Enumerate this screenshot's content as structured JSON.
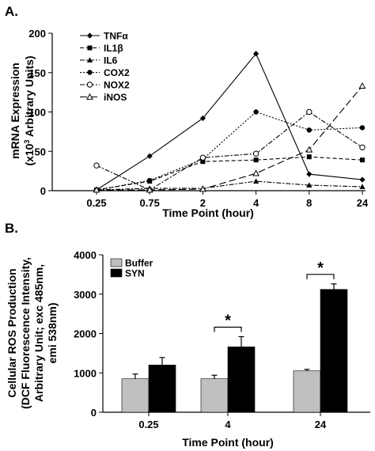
{
  "chart_data": [
    {
      "type": "line",
      "panel_label": "A.",
      "title": "",
      "xlabel": "Time Point (hour)",
      "ylabel_line1": "mRNA Expression",
      "ylabel_line2_prefix": "(x10",
      "ylabel_line2_sup": "3",
      "ylabel_line2_suffix": " Arbitrary Units)",
      "categories": [
        "0.25",
        "0.75",
        "2",
        "4",
        "8",
        "24"
      ],
      "yticks": [
        "0",
        "50",
        "100",
        "150",
        "200"
      ],
      "ylim": [
        0,
        200
      ],
      "grid": false,
      "legend_position": "top-left",
      "series": [
        {
          "name": "TNFα",
          "marker": "diamond-filled",
          "dash": "solid",
          "values": [
            1,
            44,
            92,
            174,
            21,
            14
          ]
        },
        {
          "name": "IL1β",
          "marker": "square-filled",
          "dash": "dashed",
          "values": [
            1,
            12,
            37,
            39,
            43,
            39
          ]
        },
        {
          "name": "IL6",
          "marker": "triangle-filled",
          "dash": "dashdot",
          "values": [
            1,
            3,
            3,
            12,
            7,
            5
          ]
        },
        {
          "name": "COX2",
          "marker": "circle-filled",
          "dash": "dotted",
          "values": [
            1,
            13,
            40,
            100,
            77,
            80
          ]
        },
        {
          "name": "NOX2",
          "marker": "circle-open",
          "dash": "dashdot",
          "values": [
            32,
            1,
            42,
            47,
            100,
            55
          ]
        },
        {
          "name": "iNOS",
          "marker": "triangle-open",
          "dash": "longdash",
          "values": [
            1,
            1,
            2,
            22,
            52,
            133
          ]
        }
      ]
    },
    {
      "type": "bar",
      "panel_label": "B.",
      "title": "",
      "xlabel": "Time Point (hour)",
      "ylabel_lines": [
        "Cellular ROS Production",
        "(DCF Fluorescence Intensity,",
        "Arbitrary Unit; exc 485nm,",
        "emi 538nm)"
      ],
      "categories": [
        "0.25",
        "4",
        "24"
      ],
      "yticks": [
        "0",
        "1000",
        "2000",
        "3000",
        "4000"
      ],
      "ylim": [
        0,
        4000
      ],
      "grid": false,
      "legend_position": "top-left",
      "series": [
        {
          "name": "Buffer",
          "color": "#c0c0c0",
          "values": [
            850,
            850,
            1050
          ],
          "errors": [
            120,
            90,
            40
          ]
        },
        {
          "name": "SYN",
          "color": "#000000",
          "values": [
            1200,
            1660,
            3120
          ],
          "errors": [
            190,
            260,
            140
          ]
        }
      ],
      "significance": [
        {
          "category": "4",
          "label": "*"
        },
        {
          "category": "24",
          "label": "*"
        }
      ]
    }
  ]
}
